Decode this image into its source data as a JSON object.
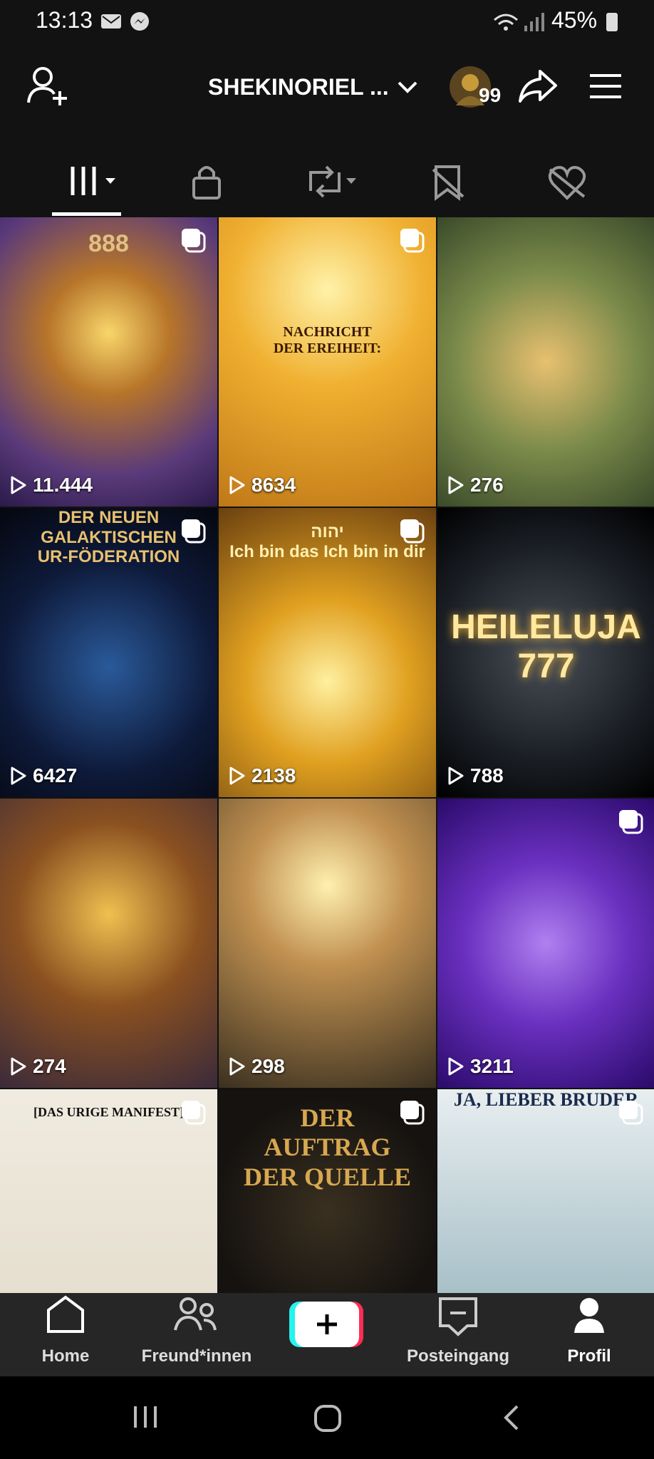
{
  "status_bar": {
    "time": "13:13",
    "battery": "45%"
  },
  "header": {
    "username": "SHEKINORIEL ...",
    "badge": "99"
  },
  "grid": {
    "items": [
      {
        "views": "11.444",
        "caption": [
          "888"
        ]
      },
      {
        "views": "8634",
        "caption": [
          "NACHRICHT",
          "DER EREIHEIT:"
        ]
      },
      {
        "views": "276",
        "caption": []
      },
      {
        "views": "6427",
        "caption": [
          "DER NEUEN GALAKTISCHEN",
          "UR-FÖDERATION"
        ]
      },
      {
        "views": "2138",
        "caption": [
          "יהוה",
          "Ich bin das Ich bin in dir"
        ]
      },
      {
        "views": "788",
        "caption": [
          "HEILELUJA",
          "777"
        ]
      },
      {
        "views": "274",
        "caption": []
      },
      {
        "views": "298",
        "caption": []
      },
      {
        "views": "3211",
        "caption": []
      },
      {
        "caption": [
          "[DAS URIGE MANIFEST]"
        ]
      },
      {
        "caption": [
          "DER",
          "AUFTRAG",
          "DER QUELLE"
        ]
      },
      {
        "caption": [
          "JA, LIEBER BRUDER"
        ]
      }
    ]
  },
  "nav": {
    "items": [
      "Home",
      "Freund*innen",
      "Posteingang",
      "Profil"
    ]
  }
}
